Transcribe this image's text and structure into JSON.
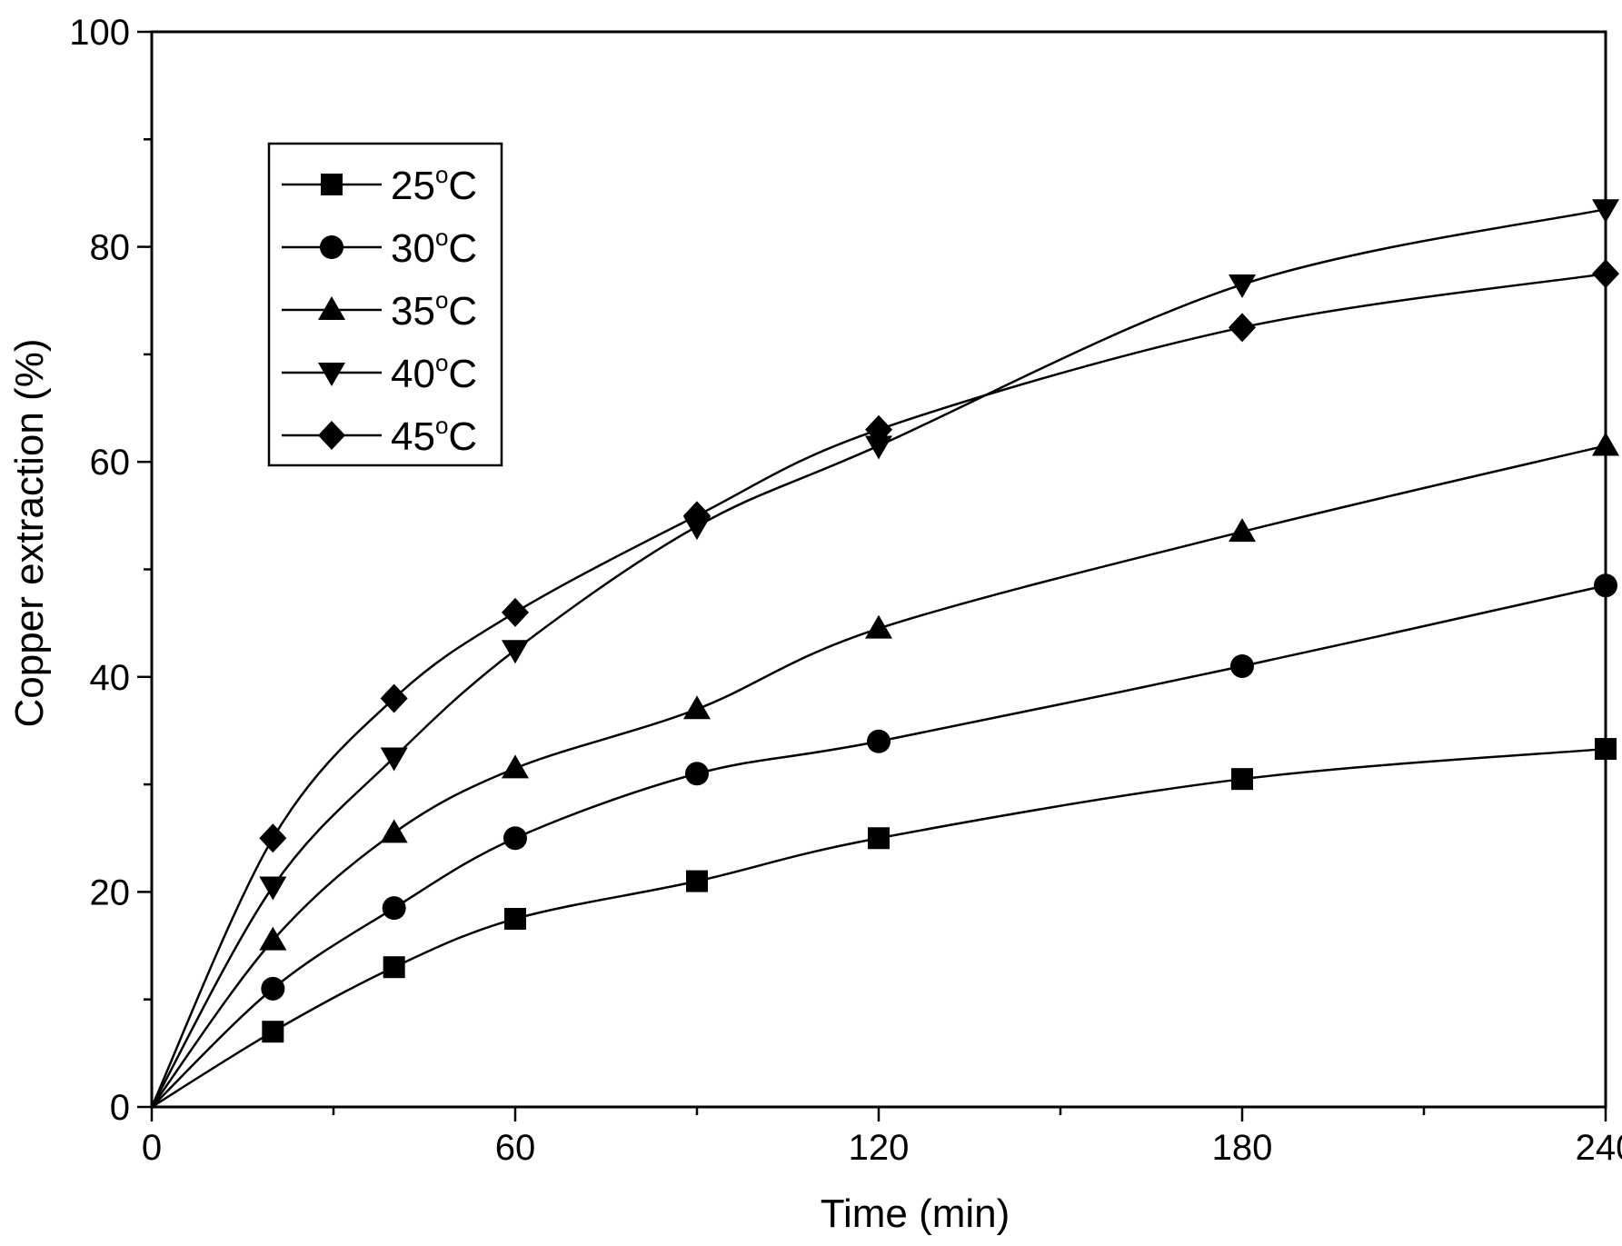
{
  "chart_data": {
    "type": "line",
    "title": "",
    "xlabel": "Time (min)",
    "ylabel": "Copper extraction (%)",
    "xlim": [
      0,
      240
    ],
    "ylim": [
      0,
      100
    ],
    "xticks": [
      0,
      60,
      120,
      180,
      240
    ],
    "xtick_labels": [
      "0",
      "60",
      "120",
      "180",
      "240"
    ],
    "yticks": [
      0,
      20,
      40,
      60,
      80,
      100
    ],
    "ytick_labels": [
      "0",
      "20",
      "40",
      "60",
      "80",
      "100"
    ],
    "grid": false,
    "legend_position": "top-left",
    "x": [
      0,
      20,
      40,
      60,
      90,
      120,
      180,
      240
    ],
    "series": [
      {
        "name": "25°C",
        "label_main": "25",
        "label_sup": "o",
        "label_unit": "C",
        "marker": "square",
        "values": [
          0,
          7,
          13,
          17.5,
          21,
          25,
          30.5,
          33.3
        ]
      },
      {
        "name": "30°C",
        "label_main": "30",
        "label_sup": "o",
        "label_unit": "C",
        "marker": "circle",
        "values": [
          0,
          11,
          18.5,
          25,
          31,
          34,
          41,
          48.5
        ]
      },
      {
        "name": "35°C",
        "label_main": "35",
        "label_sup": "o",
        "label_unit": "C",
        "marker": "triangle-up",
        "values": [
          0,
          15.5,
          25.5,
          31.5,
          37,
          44.5,
          53.5,
          61.5
        ]
      },
      {
        "name": "40°C",
        "label_main": "40",
        "label_sup": "o",
        "label_unit": "C",
        "marker": "triangle-down",
        "values": [
          0,
          20.5,
          32.5,
          42.5,
          54,
          61.5,
          76.5,
          83.5
        ]
      },
      {
        "name": "45°C",
        "label_main": "45",
        "label_sup": "o",
        "label_unit": "C",
        "marker": "diamond",
        "values": [
          0,
          25,
          38,
          46,
          55,
          63,
          72.5,
          77.5
        ]
      }
    ]
  }
}
